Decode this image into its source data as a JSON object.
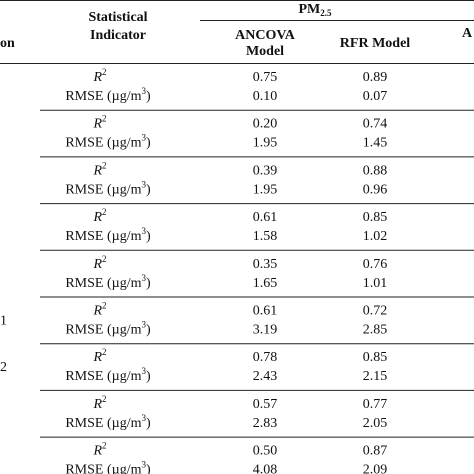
{
  "header": {
    "first_col": "on",
    "indicator": [
      "Statistical",
      "Indicator"
    ],
    "pm": "PM",
    "pm_sub": "2.5",
    "ancova": [
      "ANCOVA",
      "Model"
    ],
    "rfr": "RFR Model",
    "next_col": "A"
  },
  "indicators": {
    "r2": [
      "R",
      "2"
    ],
    "rmse": [
      "RMSE (µg/m",
      "3",
      ")"
    ]
  },
  "rows": [
    {
      "r2": [
        "0.75",
        "0.89"
      ],
      "rmse": [
        "0.10",
        "0.07"
      ]
    },
    {
      "r2": [
        "0.20",
        "0.74"
      ],
      "rmse": [
        "1.95",
        "1.45"
      ]
    },
    {
      "r2": [
        "0.39",
        "0.88"
      ],
      "rmse": [
        "1.95",
        "0.96"
      ]
    },
    {
      "r2": [
        "0.61",
        "0.85"
      ],
      "rmse": [
        "1.58",
        "1.02"
      ]
    },
    {
      "r2": [
        "0.35",
        "0.76"
      ],
      "rmse": [
        "1.65",
        "1.01"
      ]
    },
    {
      "label": "1",
      "r2": [
        "0.61",
        "0.72"
      ],
      "rmse": [
        "3.19",
        "2.85"
      ]
    },
    {
      "label": "2",
      "r2": [
        "0.78",
        "0.85"
      ],
      "rmse": [
        "2.43",
        "2.15"
      ]
    },
    {
      "r2": [
        "0.57",
        "0.77"
      ],
      "rmse": [
        "2.83",
        "2.05"
      ]
    },
    {
      "r2": [
        "0.50",
        "0.87"
      ],
      "rmse": [
        "4.08",
        "2.09"
      ]
    }
  ]
}
